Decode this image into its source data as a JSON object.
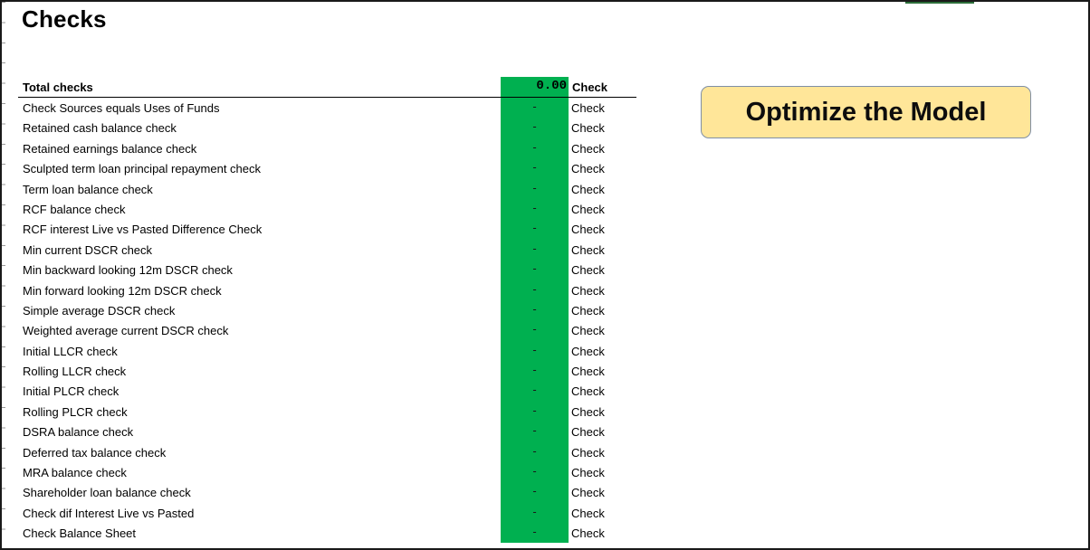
{
  "title": "Checks",
  "header": {
    "label": "Total checks",
    "value": "0.00",
    "check": "Check"
  },
  "rows": [
    {
      "label": "Check Sources equals Uses of Funds",
      "value": "-",
      "status": "Check"
    },
    {
      "label": "Retained cash balance check",
      "value": "-",
      "status": "Check"
    },
    {
      "label": "Retained earnings balance check",
      "value": "-",
      "status": "Check"
    },
    {
      "label": "Sculpted term loan principal repayment check",
      "value": "-",
      "status": "Check"
    },
    {
      "label": "Term loan balance check",
      "value": "-",
      "status": "Check"
    },
    {
      "label": "RCF balance check",
      "value": "-",
      "status": "Check"
    },
    {
      "label": "RCF interest Live vs Pasted Difference Check",
      "value": "-",
      "status": "Check"
    },
    {
      "label": "Min current DSCR check",
      "value": "-",
      "status": "Check"
    },
    {
      "label": "Min backward looking 12m DSCR check",
      "value": "-",
      "status": "Check"
    },
    {
      "label": "Min forward looking 12m DSCR check",
      "value": "-",
      "status": "Check"
    },
    {
      "label": "Simple average DSCR check",
      "value": "-",
      "status": "Check"
    },
    {
      "label": "Weighted average current DSCR check",
      "value": "-",
      "status": "Check"
    },
    {
      "label": "Initial LLCR check",
      "value": "-",
      "status": "Check"
    },
    {
      "label": "Rolling LLCR check",
      "value": "-",
      "status": "Check"
    },
    {
      "label": "Initial PLCR check",
      "value": "-",
      "status": "Check"
    },
    {
      "label": "Rolling PLCR check",
      "value": "-",
      "status": "Check"
    },
    {
      "label": "DSRA balance check",
      "value": "-",
      "status": "Check"
    },
    {
      "label": "Deferred tax balance check",
      "value": "-",
      "status": "Check"
    },
    {
      "label": "MRA balance check",
      "value": "-",
      "status": "Check"
    },
    {
      "label": "Shareholder loan balance check",
      "value": "-",
      "status": "Check"
    },
    {
      "label": "Check dif Interest Live vs Pasted",
      "value": "-",
      "status": "Check"
    },
    {
      "label": "Check Balance Sheet",
      "value": "-",
      "status": "Check"
    }
  ],
  "optimize_button": {
    "label": "Optimize the Model"
  },
  "colors": {
    "check_column": "#00b050",
    "button_fill": "#ffe699"
  }
}
